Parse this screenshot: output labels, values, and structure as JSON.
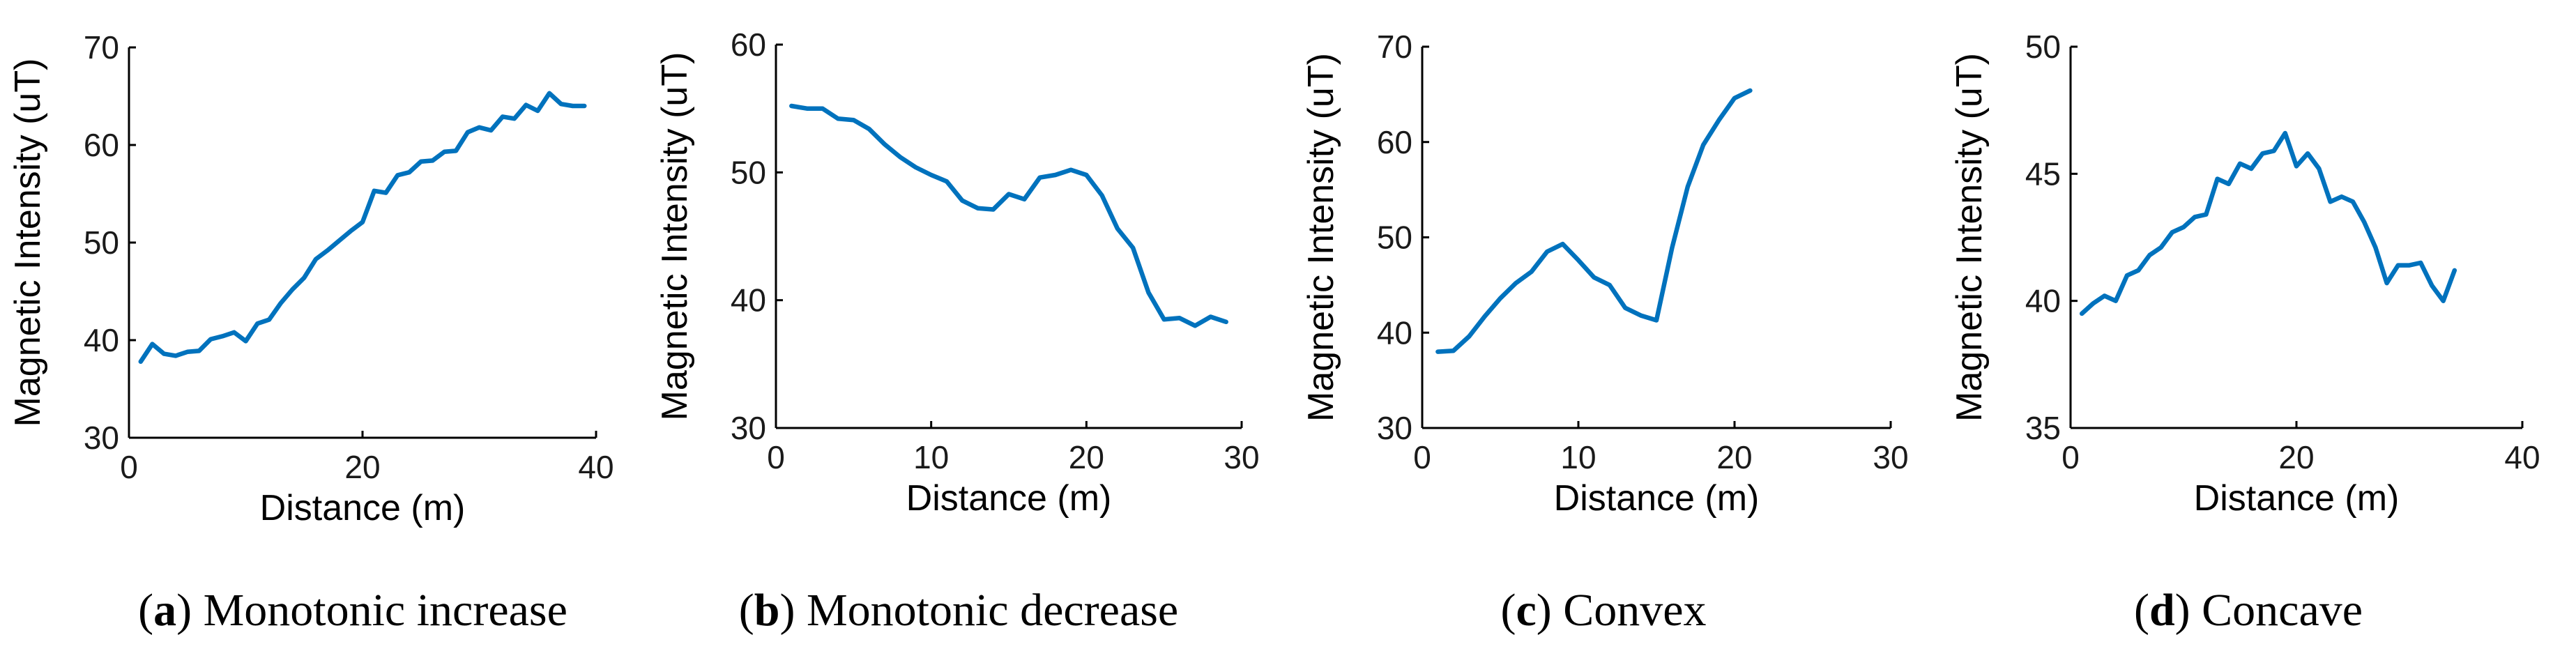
{
  "colors": {
    "series": "#0072BD"
  },
  "captions": [
    {
      "letter": "a",
      "text": "Monotonic increase"
    },
    {
      "letter": "b",
      "text": "Monotonic decrease"
    },
    {
      "letter": "c",
      "text": "Convex"
    },
    {
      "letter": "d",
      "text": "Concave"
    }
  ],
  "chart_data": [
    {
      "type": "line",
      "title": "",
      "xlabel": "Distance (m)",
      "ylabel": "Magnetic Intensity (uT)",
      "xlim": [
        0,
        40
      ],
      "ylim": [
        30,
        70
      ],
      "xticks": [
        0,
        20,
        40
      ],
      "yticks": [
        30,
        40,
        50,
        60,
        70
      ],
      "grid": false,
      "series": [
        {
          "name": "a",
          "x": [
            1,
            2,
            3,
            4,
            5,
            6,
            7,
            8,
            9,
            10,
            11,
            12,
            13,
            14,
            15,
            16,
            17,
            18,
            19,
            20,
            21,
            22,
            23,
            24,
            25,
            26,
            27,
            28,
            29,
            30,
            31,
            32,
            33,
            34,
            35,
            36,
            37,
            38,
            39
          ],
          "values": [
            37.8,
            39.6,
            38.6,
            38.4,
            38.8,
            38.9,
            40.1,
            40.4,
            40.8,
            39.9,
            41.7,
            42.1,
            43.8,
            45.2,
            46.4,
            48.3,
            49.2,
            50.2,
            51.2,
            52.1,
            55.3,
            55.1,
            56.9,
            57.2,
            58.3,
            58.4,
            59.3,
            59.4,
            61.3,
            61.8,
            61.5,
            62.9,
            62.7,
            64.1,
            63.5,
            65.3,
            64.2,
            64.0,
            64.0
          ]
        }
      ]
    },
    {
      "type": "line",
      "title": "",
      "xlabel": "Distance (m)",
      "ylabel": "Magnetic Intensity (uT)",
      "xlim": [
        0,
        30
      ],
      "ylim": [
        30,
        60
      ],
      "xticks": [
        0,
        10,
        20,
        30
      ],
      "yticks": [
        30,
        40,
        50,
        60
      ],
      "grid": false,
      "series": [
        {
          "name": "b",
          "x": [
            1,
            2,
            3,
            4,
            5,
            6,
            7,
            8,
            9,
            10,
            11,
            12,
            13,
            14,
            15,
            16,
            17,
            18,
            19,
            20,
            21,
            22,
            23,
            24,
            25,
            26,
            27,
            28,
            29
          ],
          "values": [
            55.2,
            55.0,
            55.0,
            54.2,
            54.1,
            53.4,
            52.2,
            51.2,
            50.4,
            49.8,
            49.3,
            47.8,
            47.2,
            47.1,
            48.3,
            47.9,
            49.6,
            49.8,
            50.2,
            49.8,
            48.2,
            45.6,
            44.1,
            40.6,
            38.5,
            38.6,
            38.0,
            38.7,
            38.3
          ]
        }
      ]
    },
    {
      "type": "line",
      "title": "",
      "xlabel": "Distance (m)",
      "ylabel": "Magnetic Intensity (uT)",
      "xlim": [
        0,
        30
      ],
      "ylim": [
        30,
        70
      ],
      "xticks": [
        0,
        10,
        20,
        30
      ],
      "yticks": [
        30,
        40,
        50,
        60,
        70
      ],
      "grid": false,
      "series": [
        {
          "name": "c",
          "x": [
            1,
            2,
            3,
            4,
            5,
            6,
            7,
            8,
            9,
            10,
            11,
            12,
            13,
            14,
            15,
            16,
            17,
            18,
            19,
            20,
            21
          ],
          "values": [
            38.0,
            38.1,
            39.6,
            41.7,
            43.6,
            45.2,
            46.4,
            48.5,
            49.3,
            47.6,
            45.8,
            45.0,
            42.6,
            41.8,
            41.3,
            48.9,
            55.3,
            59.7,
            62.3,
            64.6,
            65.4
          ]
        }
      ]
    },
    {
      "type": "line",
      "title": "",
      "xlabel": "Distance (m)",
      "ylabel": "Magnetic Intensity (uT)",
      "xlim": [
        0,
        40
      ],
      "ylim": [
        35,
        50
      ],
      "xticks": [
        0,
        20,
        40
      ],
      "yticks": [
        35,
        40,
        45,
        50
      ],
      "grid": false,
      "series": [
        {
          "name": "d",
          "x": [
            1,
            2,
            3,
            4,
            5,
            6,
            7,
            8,
            9,
            10,
            11,
            12,
            13,
            14,
            15,
            16,
            17,
            18,
            19,
            20,
            21,
            22,
            23,
            24,
            25,
            26,
            27,
            28,
            29,
            30,
            31,
            32,
            33,
            34
          ],
          "values": [
            39.5,
            39.9,
            40.2,
            40.0,
            41.0,
            41.2,
            41.8,
            42.1,
            42.7,
            42.9,
            43.3,
            43.4,
            44.8,
            44.6,
            45.4,
            45.2,
            45.8,
            45.9,
            46.6,
            45.3,
            45.8,
            45.2,
            43.9,
            44.1,
            43.9,
            43.1,
            42.1,
            40.7,
            41.4,
            41.4,
            41.5,
            40.6,
            40.0,
            41.2
          ]
        }
      ]
    }
  ]
}
